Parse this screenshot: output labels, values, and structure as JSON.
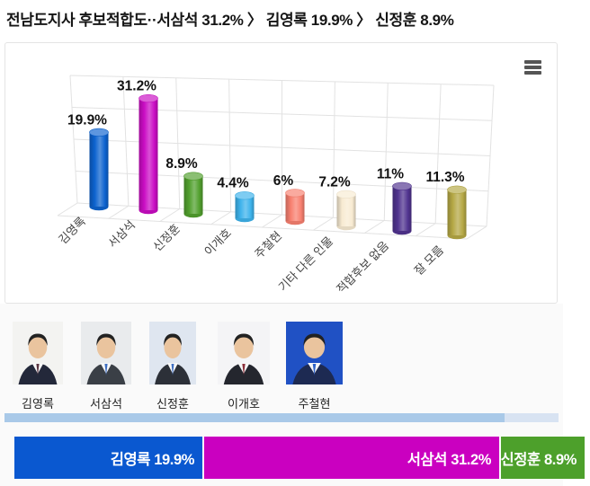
{
  "title": "전남도지사 후보적합도··서삼석 31.2% 〉 김영록 19.9% 〉 신정훈 8.9%",
  "chart_data": {
    "type": "bar",
    "style": "3d-cylinder",
    "title": "",
    "xlabel": "",
    "ylabel": "",
    "categories": [
      "김영록",
      "서삼석",
      "신정훈",
      "이개호",
      "주철현",
      "기타 다른 인물",
      "적합후보 없음",
      "잘 모름"
    ],
    "values": [
      19.9,
      31.2,
      8.9,
      4.4,
      6,
      7.2,
      11,
      11.3
    ],
    "value_labels": [
      "19.9%",
      "31.2%",
      "8.9%",
      "4.4%",
      "6%",
      "7.2%",
      "11%",
      "11.3%"
    ],
    "colors": [
      "#0d63cf",
      "#ca0dc4",
      "#52a02e",
      "#3eb3ec",
      "#f88070",
      "#f8ebd2",
      "#50338f",
      "#b5a845"
    ],
    "ylim": [
      0,
      35
    ],
    "grid": true,
    "legend": false,
    "grid_color": "#e2e2e2",
    "label_color": "#111111",
    "category_label_color": "#444444"
  },
  "menu": {
    "icon": "hamburger-menu-icon"
  },
  "candidates": [
    {
      "name": "김영록",
      "photo_bg": "#f3f3f1",
      "suit": "#23283a",
      "tie": "#5a3440"
    },
    {
      "name": "서삼석",
      "photo_bg": "#e9ebed",
      "suit": "#3a3f46",
      "tie": "#3f6fc2"
    },
    {
      "name": "신정훈",
      "photo_bg": "#dfe6f0",
      "suit": "#2c3038",
      "tie": "#3f6fc2"
    },
    {
      "name": "이개호",
      "photo_bg": "#f4f4f6",
      "suit": "#24262e",
      "tie": "#8c2f3a"
    },
    {
      "name": "주철현",
      "photo_bg": "#2051c4",
      "suit": "#1d2a52",
      "tie": "#2f63c9"
    }
  ],
  "scrollbar": {
    "thumb_color": "#a9c9e8",
    "track_color": "#d8e3f2"
  },
  "stacked_bar": {
    "segments": [
      {
        "label": "김영록 19.9%",
        "value": 19.9,
        "color": "#0a58d0"
      },
      {
        "label": "서삼석 31.2%",
        "value": 31.2,
        "color": "#ca00c0"
      },
      {
        "label": "신정훈 8.9%",
        "value": 8.9,
        "color": "#4da02b"
      }
    ]
  }
}
